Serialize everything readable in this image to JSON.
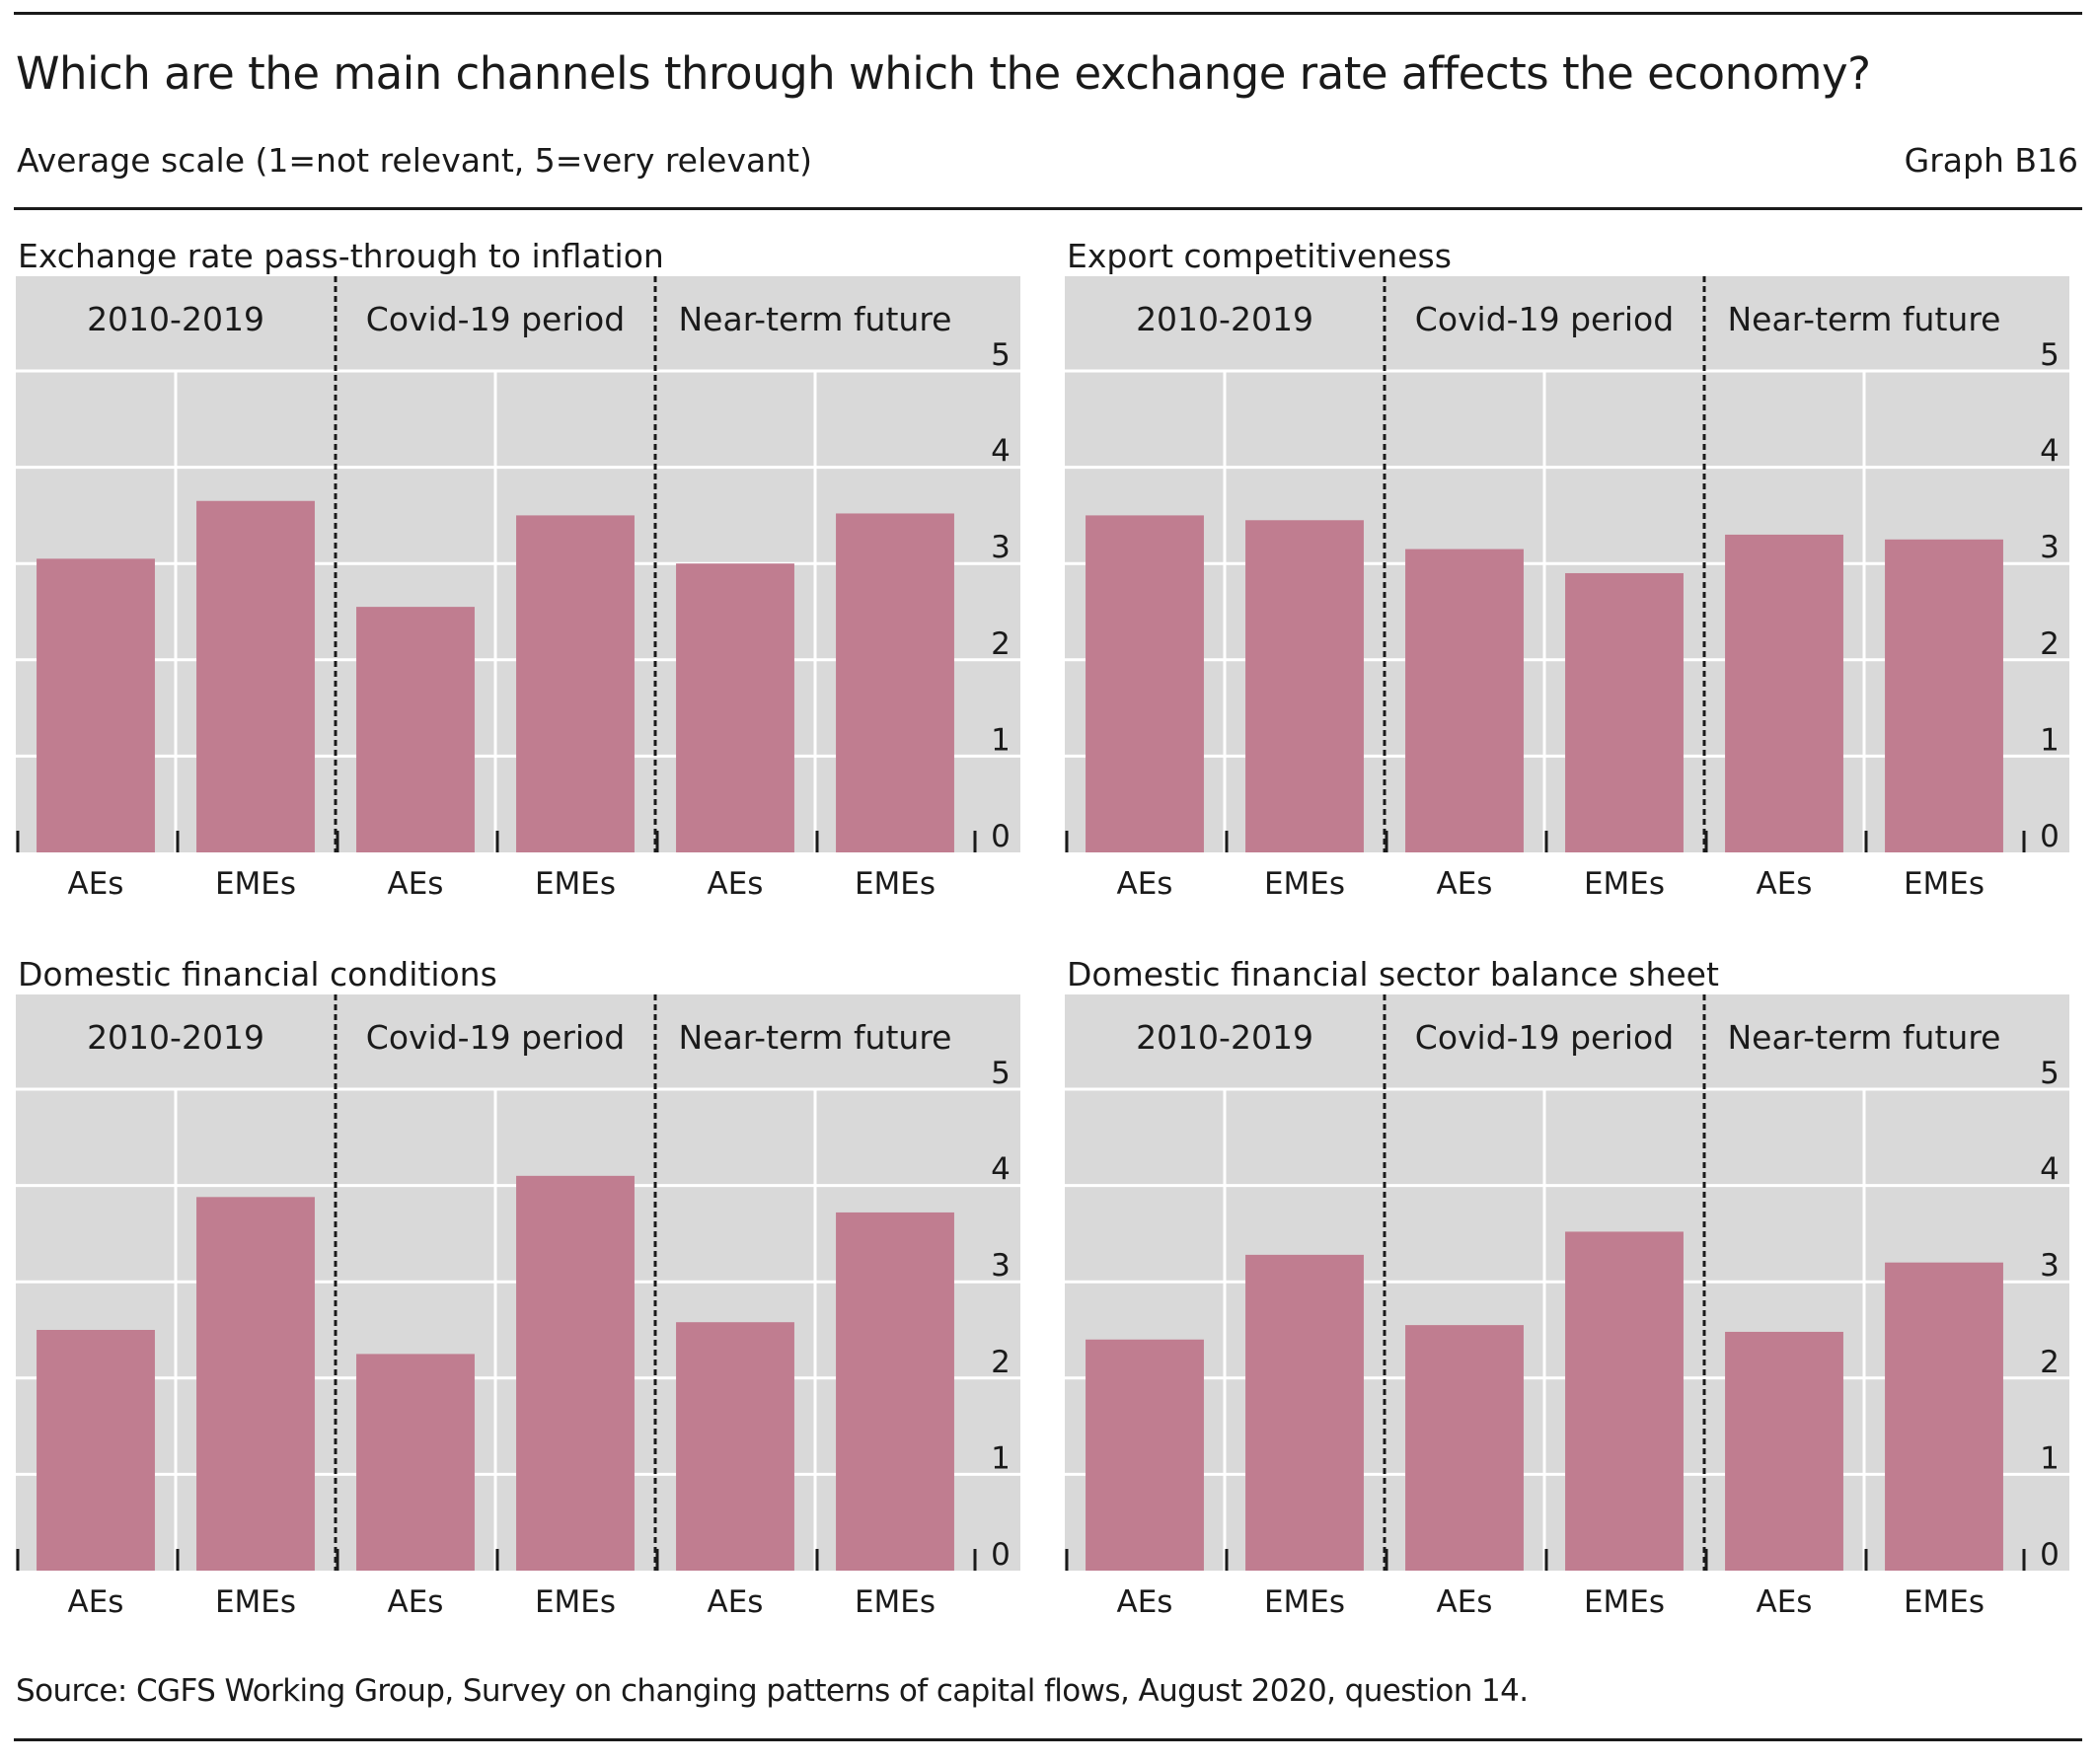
{
  "title": "Which are the main channels through which the exchange rate affects the economy?",
  "subtitle": "Average scale (1=not relevant, 5=very relevant)",
  "graph_id": "Graph B16",
  "source": "Source: CGFS Working Group, Survey on changing patterns of capital flows, August 2020, question 14.",
  "colors": {
    "bar": "#c07d90",
    "plot_bg": "#d9d9d9",
    "grid": "#ffffff",
    "text": "#1a1a1a"
  },
  "chart_data": [
    {
      "type": "bar",
      "title": "Exchange rate pass-through to inflation",
      "groups": [
        "2010-2019",
        "Covid-19 period",
        "Near-term future"
      ],
      "categories": [
        "AEs",
        "EMEs"
      ],
      "values": [
        [
          3.05,
          3.65
        ],
        [
          2.55,
          3.5
        ],
        [
          3.0,
          3.52
        ]
      ],
      "ylim": [
        0,
        5
      ],
      "yticks": [
        0,
        1,
        2,
        3,
        4,
        5
      ],
      "y_axis_side": "right",
      "grid": true
    },
    {
      "type": "bar",
      "title": "Export competitiveness",
      "groups": [
        "2010-2019",
        "Covid-19 period",
        "Near-term future"
      ],
      "categories": [
        "AEs",
        "EMEs"
      ],
      "values": [
        [
          3.5,
          3.45
        ],
        [
          3.15,
          2.9
        ],
        [
          3.3,
          3.25
        ]
      ],
      "ylim": [
        0,
        5
      ],
      "yticks": [
        0,
        1,
        2,
        3,
        4,
        5
      ],
      "y_axis_side": "right",
      "grid": true
    },
    {
      "type": "bar",
      "title": "Domestic financial conditions",
      "groups": [
        "2010-2019",
        "Covid-19 period",
        "Near-term future"
      ],
      "categories": [
        "AEs",
        "EMEs"
      ],
      "values": [
        [
          2.5,
          3.88
        ],
        [
          2.25,
          4.1
        ],
        [
          2.58,
          3.72
        ]
      ],
      "ylim": [
        0,
        5
      ],
      "yticks": [
        0,
        1,
        2,
        3,
        4,
        5
      ],
      "y_axis_side": "right",
      "grid": true
    },
    {
      "type": "bar",
      "title": "Domestic financial sector balance sheet",
      "groups": [
        "2010-2019",
        "Covid-19 period",
        "Near-term future"
      ],
      "categories": [
        "AEs",
        "EMEs"
      ],
      "values": [
        [
          2.4,
          3.28
        ],
        [
          2.55,
          3.52
        ],
        [
          2.48,
          3.2
        ]
      ],
      "ylim": [
        0,
        5
      ],
      "yticks": [
        0,
        1,
        2,
        3,
        4,
        5
      ],
      "y_axis_side": "right",
      "grid": true
    }
  ]
}
